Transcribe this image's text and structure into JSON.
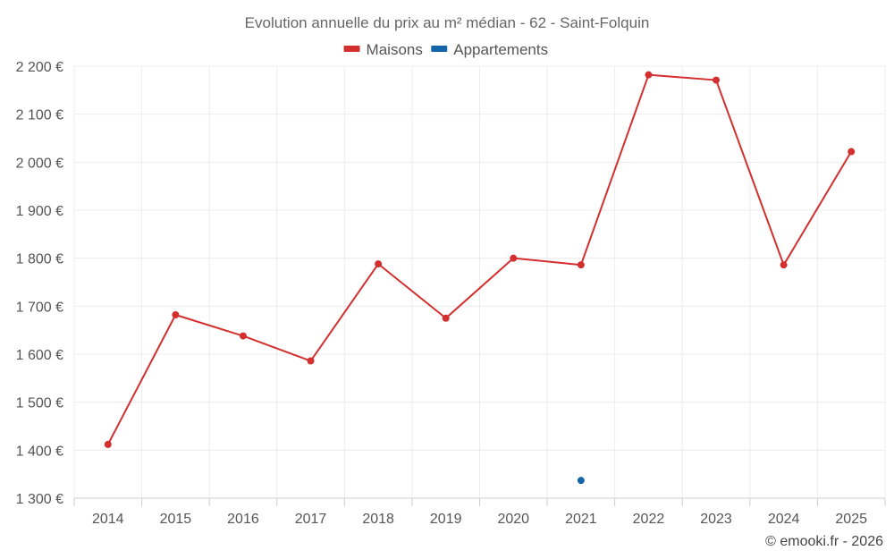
{
  "chart_data": {
    "type": "line",
    "title": "Evolution annuelle du prix au m² médian - 62 - Saint-Folquin",
    "xlabel": "",
    "ylabel": "",
    "categories": [
      "2014",
      "2015",
      "2016",
      "2017",
      "2018",
      "2019",
      "2020",
      "2021",
      "2022",
      "2023",
      "2024",
      "2025"
    ],
    "ylim": [
      1300,
      2200
    ],
    "yticks": [
      1300,
      1400,
      1500,
      1600,
      1700,
      1800,
      1900,
      2000,
      2100,
      2200
    ],
    "ytick_labels": [
      "1 300 €",
      "1 400 €",
      "1 500 €",
      "1 600 €",
      "1 700 €",
      "1 800 €",
      "1 900 €",
      "2 000 €",
      "2 100 €",
      "2 200 €"
    ],
    "grid": true,
    "legend_position": "top-center",
    "series": [
      {
        "name": "Maisons",
        "color": "#d32f2f",
        "values": [
          1412,
          1682,
          1638,
          1586,
          1788,
          1675,
          1800,
          1786,
          2182,
          2171,
          1786,
          2022
        ]
      },
      {
        "name": "Appartements",
        "color": "#1565a8",
        "values": [
          null,
          null,
          null,
          null,
          null,
          null,
          null,
          1337,
          null,
          null,
          null,
          null
        ]
      }
    ]
  },
  "footer": {
    "credit": "© emooki.fr - 2026"
  }
}
